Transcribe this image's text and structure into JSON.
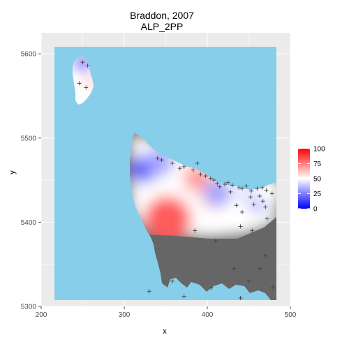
{
  "chart_data": {
    "type": "heatmap",
    "title": [
      "Braddon, 2007",
      "ALP_2PP"
    ],
    "xlabel": "x",
    "ylabel": "y",
    "xlim": [
      200,
      500
    ],
    "ylim": [
      5300,
      5625
    ],
    "x_ticks": [
      200,
      300,
      400,
      500
    ],
    "y_ticks": [
      5300,
      5400,
      5500,
      5600
    ],
    "data_extent": {
      "x": [
        212,
        486
      ],
      "y": [
        5307,
        5622
      ]
    },
    "grid": true,
    "legend_position": "right",
    "scale": {
      "low_color": "#0000ff",
      "mid_color": "#ffffff",
      "high_color": "#ff0000",
      "midpoint": 50,
      "limits": [
        0,
        100
      ],
      "breaks": [
        0,
        25,
        50,
        75,
        100
      ]
    },
    "colors": {
      "water": "#87ceeb",
      "land_no_data": "#666666",
      "panel_background": "#ebebeb",
      "gridline": "#ffffff"
    },
    "hotspots": [
      {
        "x": 323,
        "y": 5463,
        "value": 18
      },
      {
        "x": 343,
        "y": 5472,
        "value": 32
      },
      {
        "x": 352,
        "y": 5403,
        "value": 82
      },
      {
        "x": 388,
        "y": 5452,
        "value": 70
      },
      {
        "x": 408,
        "y": 5432,
        "value": 62
      },
      {
        "x": 413,
        "y": 5435,
        "value": 32
      },
      {
        "x": 462,
        "y": 5430,
        "value": 22
      },
      {
        "x": 453,
        "y": 5438,
        "value": 44
      },
      {
        "x": 475,
        "y": 5436,
        "value": 50
      },
      {
        "x": 250,
        "y": 5590,
        "value": 20
      },
      {
        "x": 258,
        "y": 5565,
        "value": 64
      },
      {
        "x": 250,
        "y": 5560,
        "value": 50
      }
    ],
    "polling_places": [
      {
        "x": 340,
        "y": 5476
      },
      {
        "x": 345,
        "y": 5474
      },
      {
        "x": 358,
        "y": 5470
      },
      {
        "x": 372,
        "y": 5466
      },
      {
        "x": 383,
        "y": 5462
      },
      {
        "x": 392,
        "y": 5457
      },
      {
        "x": 398,
        "y": 5455
      },
      {
        "x": 404,
        "y": 5452
      },
      {
        "x": 408,
        "y": 5450
      },
      {
        "x": 412,
        "y": 5446
      },
      {
        "x": 421,
        "y": 5445
      },
      {
        "x": 425,
        "y": 5447
      },
      {
        "x": 430,
        "y": 5444
      },
      {
        "x": 438,
        "y": 5441
      },
      {
        "x": 442,
        "y": 5440
      },
      {
        "x": 447,
        "y": 5443
      },
      {
        "x": 453,
        "y": 5437
      },
      {
        "x": 460,
        "y": 5440
      },
      {
        "x": 466,
        "y": 5441
      },
      {
        "x": 471,
        "y": 5438
      },
      {
        "x": 478,
        "y": 5434
      },
      {
        "x": 452,
        "y": 5430
      },
      {
        "x": 463,
        "y": 5431
      },
      {
        "x": 467,
        "y": 5425
      },
      {
        "x": 456,
        "y": 5421
      },
      {
        "x": 442,
        "y": 5412
      },
      {
        "x": 435,
        "y": 5420
      },
      {
        "x": 428,
        "y": 5436
      },
      {
        "x": 415,
        "y": 5442
      },
      {
        "x": 388,
        "y": 5470
      },
      {
        "x": 367,
        "y": 5464
      },
      {
        "x": 250,
        "y": 5590
      },
      {
        "x": 256,
        "y": 5586
      },
      {
        "x": 246,
        "y": 5565
      },
      {
        "x": 254,
        "y": 5560
      },
      {
        "x": 470,
        "y": 5418
      },
      {
        "x": 472,
        "y": 5404
      },
      {
        "x": 440,
        "y": 5395
      },
      {
        "x": 454,
        "y": 5390
      },
      {
        "x": 410,
        "y": 5378
      },
      {
        "x": 385,
        "y": 5390
      },
      {
        "x": 470,
        "y": 5360
      },
      {
        "x": 463,
        "y": 5345
      },
      {
        "x": 432,
        "y": 5345
      },
      {
        "x": 450,
        "y": 5330
      },
      {
        "x": 479,
        "y": 5323
      },
      {
        "x": 405,
        "y": 5322
      },
      {
        "x": 358,
        "y": 5330
      },
      {
        "x": 330,
        "y": 5318
      },
      {
        "x": 372,
        "y": 5312
      },
      {
        "x": 440,
        "y": 5310
      }
    ]
  }
}
